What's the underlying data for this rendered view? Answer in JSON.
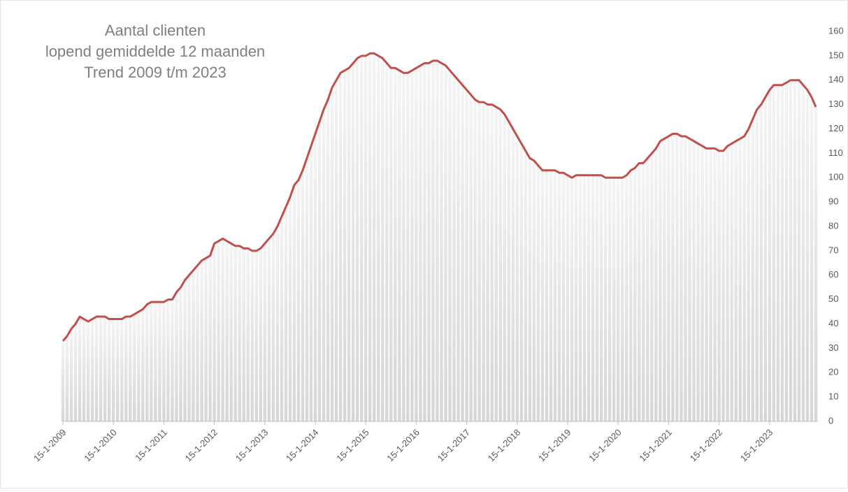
{
  "chart_data": {
    "type": "line",
    "title": [
      "Aantal clienten",
      "lopend gemiddelde 12 maanden",
      "Trend 2009 t/m 2023"
    ],
    "categories": [
      "15-1-2009",
      null,
      null,
      null,
      null,
      null,
      null,
      null,
      null,
      null,
      null,
      null,
      "15-1-2010",
      null,
      null,
      null,
      null,
      null,
      null,
      null,
      null,
      null,
      null,
      null,
      "15-1-2011",
      null,
      null,
      null,
      null,
      null,
      null,
      null,
      null,
      null,
      null,
      null,
      "15-1-2012",
      null,
      null,
      null,
      null,
      null,
      null,
      null,
      null,
      null,
      null,
      null,
      "15-1-2013",
      null,
      null,
      null,
      null,
      null,
      null,
      null,
      null,
      null,
      null,
      null,
      "15-1-2014",
      null,
      null,
      null,
      null,
      null,
      null,
      null,
      null,
      null,
      null,
      null,
      "15-1-2015",
      null,
      null,
      null,
      null,
      null,
      null,
      null,
      null,
      null,
      null,
      null,
      "15-1-2016",
      null,
      null,
      null,
      null,
      null,
      null,
      null,
      null,
      null,
      null,
      null,
      "15-1-2017",
      null,
      null,
      null,
      null,
      null,
      null,
      null,
      null,
      null,
      null,
      null,
      "15-1-2018",
      null,
      null,
      null,
      null,
      null,
      null,
      null,
      null,
      null,
      null,
      null,
      "15-1-2019",
      null,
      null,
      null,
      null,
      null,
      null,
      null,
      null,
      null,
      null,
      null,
      "15-1-2020",
      null,
      null,
      null,
      null,
      null,
      null,
      null,
      null,
      null,
      null,
      null,
      "15-1-2021",
      null,
      null,
      null,
      null,
      null,
      null,
      null,
      null,
      null,
      null,
      null,
      "15-1-2022",
      null,
      null,
      null,
      null,
      null,
      null,
      null,
      null,
      null,
      null,
      null,
      "15-1-2023",
      null,
      null,
      null,
      null,
      null,
      null,
      null,
      null,
      null,
      null,
      null
    ],
    "values": [
      33,
      35,
      38,
      40,
      43,
      42,
      41,
      42,
      43,
      43,
      43,
      42,
      42,
      42,
      42,
      43,
      43,
      44,
      45,
      46,
      48,
      49,
      49,
      49,
      49,
      50,
      50,
      53,
      55,
      58,
      60,
      62,
      64,
      66,
      67,
      68,
      73,
      74,
      75,
      74,
      73,
      72,
      72,
      71,
      71,
      70,
      70,
      71,
      73,
      75,
      77,
      80,
      84,
      88,
      92,
      97,
      99,
      103,
      108,
      113,
      118,
      123,
      128,
      132,
      137,
      140,
      143,
      144,
      145,
      147,
      149,
      150,
      150,
      151,
      151,
      150,
      149,
      147,
      145,
      145,
      144,
      143,
      143,
      144,
      145,
      146,
      147,
      147,
      148,
      148,
      147,
      146,
      144,
      142,
      140,
      138,
      136,
      134,
      132,
      131,
      131,
      130,
      130,
      129,
      128,
      126,
      123,
      120,
      117,
      114,
      111,
      108,
      107,
      105,
      103,
      103,
      103,
      103,
      102,
      102,
      101,
      100,
      101,
      101,
      101,
      101,
      101,
      101,
      101,
      100,
      100,
      100,
      100,
      100,
      101,
      103,
      104,
      106,
      106,
      108,
      110,
      112,
      115,
      116,
      117,
      118,
      118,
      117,
      117,
      116,
      115,
      114,
      113,
      112,
      112,
      112,
      111,
      111,
      113,
      114,
      115,
      116,
      117,
      120,
      124,
      128,
      130,
      133,
      136,
      138,
      138,
      138,
      139,
      140,
      140,
      140,
      138,
      136,
      133,
      129
    ],
    "color": "#c0504d",
    "ylim": [
      0,
      160
    ],
    "yticks": [
      0,
      10,
      20,
      30,
      40,
      50,
      60,
      70,
      80,
      90,
      100,
      110,
      120,
      130,
      140,
      150,
      160
    ]
  }
}
